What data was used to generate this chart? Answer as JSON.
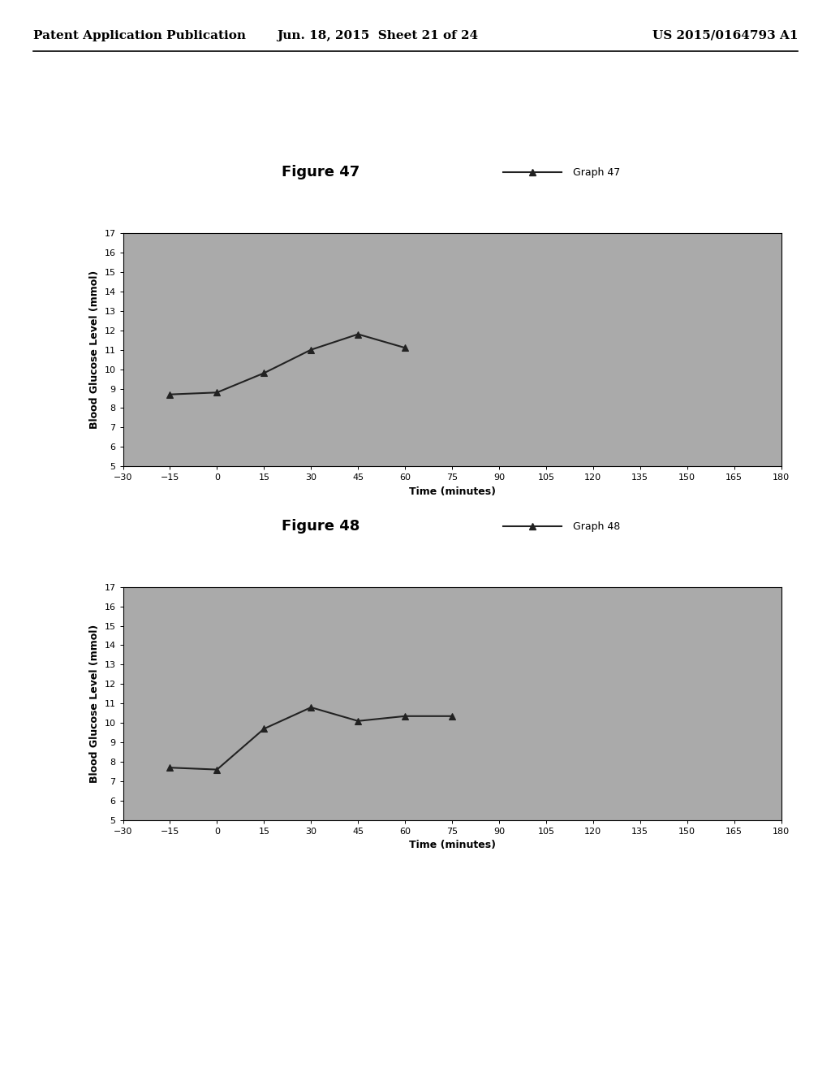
{
  "fig47": {
    "title": "Figure 47",
    "legend_label": "Graph 47",
    "x": [
      -15,
      0,
      15,
      30,
      45,
      60
    ],
    "y": [
      8.7,
      8.8,
      9.8,
      11.0,
      11.8,
      11.1
    ]
  },
  "fig48": {
    "title": "Figure 48",
    "legend_label": "Graph 48",
    "x": [
      -15,
      0,
      15,
      30,
      45,
      60,
      75
    ],
    "y": [
      7.7,
      7.6,
      9.7,
      10.8,
      10.1,
      10.35,
      10.35
    ]
  },
  "xlabel": "Time (minutes)",
  "ylabel": "Blood Glucose Level (mmol)",
  "xticks": [
    -30,
    -15,
    0,
    15,
    30,
    45,
    60,
    75,
    90,
    105,
    120,
    135,
    150,
    165,
    180
  ],
  "yticks": [
    5,
    6,
    7,
    8,
    9,
    10,
    11,
    12,
    13,
    14,
    15,
    16,
    17
  ],
  "ylim": [
    5,
    17
  ],
  "xlim": [
    -30,
    180
  ],
  "bg_color": "#aaaaaa",
  "line_color": "#222222",
  "marker": "^",
  "header_left": "Patent Application Publication",
  "header_mid": "Jun. 18, 2015  Sheet 21 of 24",
  "header_right": "US 2015/0164793 A1",
  "page_bg": "#ffffff",
  "title_fontsize": 13,
  "legend_fontsize": 9,
  "axis_label_fontsize": 9,
  "tick_fontsize": 8
}
